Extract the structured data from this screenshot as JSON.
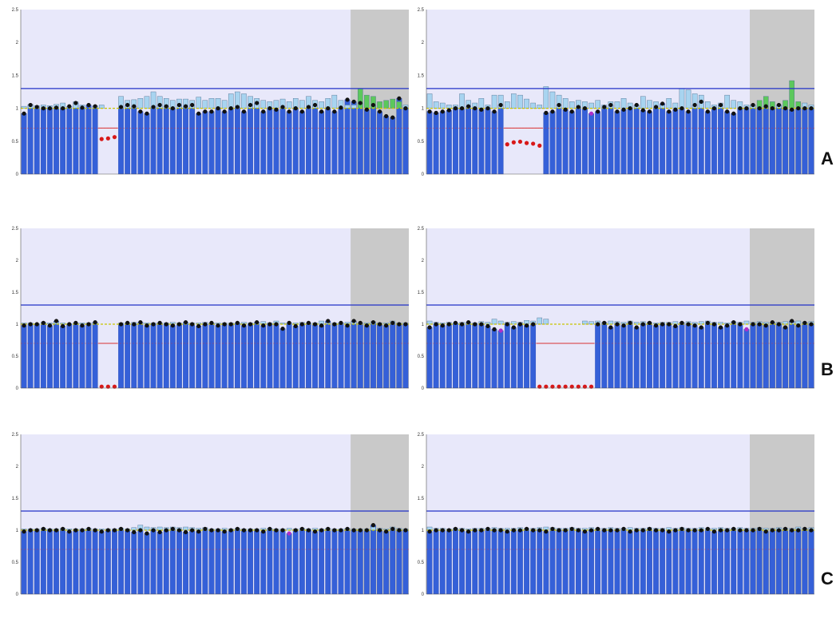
{
  "row_labels": [
    "A",
    "B",
    "C"
  ],
  "colors": {
    "plot_bg": "#e8e8fa",
    "ref_bg": "#c9c9c9",
    "bar": "#3560d8",
    "bar_edge": "#1e3ea8",
    "upper_line": "#2332c8",
    "lower_line": "#d83232",
    "mean_line": "#c8c400",
    "box_fill": "#a8d4f0",
    "box_ref_fill": "#5cc85c",
    "dot": "#111111",
    "deleted_dot": "#d81818",
    "purple_dot": "#b030c8"
  },
  "chart_data": [
    {
      "id": "A-left",
      "type": "bar",
      "ylim": [
        0,
        2.5
      ],
      "yticks": [
        "0",
        "0.5",
        "1",
        "1.5",
        "2",
        "2.5"
      ],
      "upper_threshold": 1.3,
      "lower_threshold": 0.7,
      "reference_start_index": 51,
      "deleted_range": [
        12,
        14
      ],
      "values": [
        0.92,
        1.05,
        1.02,
        1.0,
        1.0,
        1.01,
        1.0,
        1.03,
        1.08,
        1.01,
        1.05,
        1.03,
        0.52,
        0.53,
        0.55,
        1.02,
        1.05,
        1.03,
        0.95,
        0.92,
        1.02,
        1.05,
        1.03,
        1.0,
        1.05,
        1.03,
        1.05,
        0.92,
        0.95,
        0.95,
        1.0,
        0.95,
        1.0,
        1.02,
        0.95,
        1.05,
        1.08,
        0.95,
        1.0,
        0.98,
        1.02,
        0.95,
        1.0,
        0.95,
        1.02,
        1.05,
        0.95,
        1.0,
        0.95,
        1.01,
        1.13,
        1.1,
        1.08,
        0.98,
        1.05,
        0.95,
        0.88,
        0.86,
        1.15,
        1.0
      ],
      "box_heights": [
        1.03,
        1.06,
        1.04,
        1.05,
        1.04,
        1.06,
        1.08,
        1.03,
        1.1,
        1.05,
        1.0,
        1.04,
        1.05,
        1.0,
        1.0,
        1.18,
        1.12,
        1.13,
        1.15,
        1.18,
        1.25,
        1.18,
        1.15,
        1.12,
        1.14,
        1.14,
        1.12,
        1.17,
        1.12,
        1.15,
        1.15,
        1.12,
        1.22,
        1.25,
        1.22,
        1.18,
        1.15,
        1.12,
        1.1,
        1.12,
        1.14,
        1.1,
        1.15,
        1.12,
        1.18,
        1.12,
        1.1,
        1.15,
        1.2,
        1.12,
        1.05,
        1.05,
        1.3,
        1.2,
        1.18,
        1.1,
        1.12,
        1.14,
        1.1,
        1.05
      ]
    },
    {
      "id": "A-right",
      "type": "bar",
      "ylim": [
        0,
        2.5
      ],
      "yticks": [
        "0",
        "0.5",
        "1",
        "1.5",
        "2",
        "2.5"
      ],
      "upper_threshold": 1.3,
      "lower_threshold": 0.7,
      "reference_start_index": 50,
      "deleted_range": [
        12,
        17
      ],
      "purple_indices": [
        25
      ],
      "values": [
        0.95,
        0.93,
        0.95,
        0.97,
        1.0,
        1.0,
        1.03,
        1.0,
        0.98,
        1.0,
        0.95,
        1.05,
        0.44,
        0.47,
        0.48,
        0.46,
        0.45,
        0.42,
        0.93,
        0.95,
        1.05,
        0.98,
        0.95,
        1.02,
        1.0,
        0.92,
        0.95,
        1.02,
        1.05,
        0.95,
        0.98,
        1.0,
        1.05,
        0.97,
        0.95,
        1.02,
        1.07,
        0.95,
        0.98,
        1.0,
        0.95,
        1.05,
        1.1,
        0.95,
        1.0,
        1.05,
        0.95,
        0.92,
        1.0,
        1.0,
        1.05,
        1.0,
        1.03,
        1.0,
        1.05,
        1.0,
        0.98,
        1.0,
        1.0,
        1.0
      ],
      "box_heights": [
        1.22,
        1.1,
        1.08,
        1.05,
        1.05,
        1.22,
        1.12,
        1.08,
        1.15,
        1.05,
        1.2,
        1.2,
        1.1,
        1.22,
        1.2,
        1.14,
        1.08,
        1.05,
        1.33,
        1.25,
        1.2,
        1.15,
        1.1,
        1.12,
        1.1,
        1.08,
        1.12,
        1.05,
        1.1,
        1.1,
        1.15,
        1.08,
        1.05,
        1.18,
        1.12,
        1.1,
        1.05,
        1.15,
        1.08,
        1.3,
        1.28,
        1.22,
        1.2,
        1.1,
        1.05,
        1.08,
        1.2,
        1.12,
        1.1,
        1.05,
        1.05,
        1.12,
        1.18,
        1.1,
        1.05,
        1.12,
        1.42,
        1.1,
        1.08,
        1.05
      ]
    },
    {
      "id": "B-left",
      "type": "bar",
      "ylim": [
        0,
        2.5
      ],
      "yticks": [
        "0",
        "0.5",
        "1",
        "1.5",
        "2",
        "2.5"
      ],
      "upper_threshold": 1.3,
      "lower_threshold": 0.7,
      "reference_start_index": 51,
      "deleted_range": [
        12,
        14
      ],
      "values": [
        0.98,
        1.0,
        1.0,
        1.02,
        0.98,
        1.05,
        0.97,
        1.0,
        1.02,
        0.98,
        1.0,
        1.03,
        0.01,
        0.01,
        0.01,
        1.0,
        1.02,
        1.0,
        1.03,
        0.98,
        1.0,
        1.02,
        1.0,
        0.98,
        1.0,
        1.03,
        1.0,
        0.97,
        1.0,
        1.02,
        0.98,
        1.0,
        1.0,
        1.02,
        0.98,
        1.0,
        1.03,
        0.98,
        1.0,
        1.0,
        0.93,
        1.02,
        0.97,
        1.0,
        1.02,
        1.0,
        0.98,
        1.05,
        1.0,
        1.02,
        0.98,
        1.05,
        1.02,
        0.98,
        1.03,
        1.0,
        0.98,
        1.02,
        1.0,
        1.0
      ],
      "box_heights": [
        1.02,
        1.02,
        1.01,
        1.03,
        1.02,
        1.04,
        1.02,
        1.01,
        1.02,
        1.02,
        1.02,
        1.02,
        1.0,
        1.0,
        1.0,
        1.02,
        1.02,
        1.03,
        1.02,
        1.02,
        1.02,
        1.02,
        1.02,
        1.03,
        1.02,
        1.02,
        1.02,
        1.02,
        1.03,
        1.02,
        1.02,
        1.02,
        1.02,
        1.02,
        1.03,
        1.02,
        1.02,
        1.04,
        1.02,
        1.05,
        1.02,
        1.02,
        1.02,
        1.03,
        1.02,
        1.02,
        1.05,
        1.02,
        1.02,
        1.02,
        1.03,
        1.04,
        1.02,
        1.02,
        1.04,
        1.02,
        1.02,
        1.05,
        1.02,
        1.02
      ]
    },
    {
      "id": "B-right",
      "type": "bar",
      "ylim": [
        0,
        2.5
      ],
      "yticks": [
        "0",
        "0.5",
        "1",
        "1.5",
        "2",
        "2.5"
      ],
      "upper_threshold": 1.3,
      "lower_threshold": 0.7,
      "reference_start_index": 50,
      "deleted_range": [
        17,
        25
      ],
      "purple_indices": [
        11,
        49
      ],
      "values": [
        0.95,
        1.0,
        0.98,
        1.0,
        1.02,
        1.0,
        1.03,
        1.0,
        1.0,
        0.97,
        0.92,
        0.9,
        1.0,
        0.95,
        1.0,
        0.98,
        1.0,
        0.01,
        0.01,
        0.01,
        0.01,
        0.01,
        0.01,
        0.01,
        0.01,
        0.01,
        1.0,
        1.02,
        0.95,
        1.0,
        0.98,
        1.02,
        0.95,
        1.0,
        1.02,
        0.98,
        1.0,
        1.0,
        0.97,
        1.02,
        1.0,
        0.98,
        0.95,
        1.02,
        1.0,
        0.95,
        0.98,
        1.03,
        1.0,
        0.92,
        1.0,
        1.0,
        0.98,
        1.03,
        1.0,
        0.95,
        1.05,
        0.98,
        1.02,
        1.0
      ],
      "box_heights": [
        1.05,
        1.03,
        1.02,
        1.03,
        1.02,
        1.03,
        1.03,
        1.02,
        1.04,
        1.03,
        1.08,
        1.05,
        1.03,
        1.04,
        1.03,
        1.06,
        1.05,
        1.1,
        1.08,
        1.0,
        1.0,
        1.0,
        1.0,
        1.0,
        1.05,
        1.04,
        1.05,
        1.03,
        1.05,
        1.04,
        1.03,
        1.05,
        1.03,
        1.04,
        1.03,
        1.02,
        1.03,
        1.03,
        1.04,
        1.03,
        1.04,
        1.03,
        1.04,
        1.05,
        1.03,
        1.03,
        1.02,
        1.04,
        1.03,
        1.05,
        1.03,
        1.04,
        1.03,
        1.02,
        1.03,
        1.04,
        1.03,
        1.05,
        1.03,
        1.04
      ]
    },
    {
      "id": "C-left",
      "type": "bar",
      "ylim": [
        0,
        2.5
      ],
      "yticks": [
        "0",
        "0.5",
        "1",
        "1.5",
        "2",
        "2.5"
      ],
      "upper_threshold": 1.3,
      "lower_threshold": 0.7,
      "reference_start_index": 51,
      "deleted_range": [],
      "purple_indices": [
        41
      ],
      "values": [
        0.98,
        1.0,
        1.0,
        1.02,
        1.0,
        1.0,
        1.02,
        0.98,
        1.0,
        1.0,
        1.02,
        1.0,
        0.98,
        1.0,
        1.0,
        1.02,
        1.0,
        0.97,
        1.0,
        0.95,
        1.0,
        0.97,
        1.0,
        1.02,
        1.0,
        0.97,
        1.0,
        0.98,
        1.02,
        1.0,
        1.0,
        0.98,
        1.0,
        1.02,
        1.0,
        1.0,
        1.0,
        0.98,
        1.02,
        1.0,
        1.0,
        0.95,
        1.0,
        1.02,
        1.0,
        0.98,
        1.0,
        1.02,
        1.0,
        1.0,
        1.02,
        1.0,
        1.0,
        1.0,
        1.08,
        1.0,
        0.98,
        1.02,
        1.0,
        1.0
      ],
      "box_heights": [
        1.02,
        1.02,
        1.02,
        1.03,
        1.02,
        1.02,
        1.03,
        1.02,
        1.02,
        1.02,
        1.03,
        1.02,
        1.02,
        1.02,
        1.02,
        1.03,
        1.02,
        1.04,
        1.08,
        1.05,
        1.04,
        1.05,
        1.04,
        1.05,
        1.04,
        1.05,
        1.04,
        1.03,
        1.04,
        1.02,
        1.02,
        1.03,
        1.02,
        1.03,
        1.02,
        1.02,
        1.02,
        1.03,
        1.03,
        1.02,
        1.02,
        1.03,
        1.02,
        1.03,
        1.02,
        1.03,
        1.02,
        1.03,
        1.02,
        1.02,
        1.03,
        1.02,
        1.02,
        1.02,
        1.05,
        1.03,
        1.02,
        1.05,
        1.03,
        1.02
      ]
    },
    {
      "id": "C-right",
      "type": "bar",
      "ylim": [
        0,
        2.5
      ],
      "yticks": [
        "0",
        "0.5",
        "1",
        "1.5",
        "2",
        "2.5"
      ],
      "upper_threshold": 1.3,
      "lower_threshold": 0.7,
      "reference_start_index": 50,
      "deleted_range": [],
      "values": [
        0.98,
        1.0,
        1.0,
        1.0,
        1.02,
        1.0,
        0.98,
        1.0,
        1.0,
        1.02,
        1.0,
        1.0,
        0.98,
        1.0,
        1.0,
        1.02,
        1.0,
        1.0,
        0.98,
        1.02,
        1.0,
        1.0,
        1.02,
        1.0,
        0.98,
        1.0,
        1.02,
        1.0,
        1.0,
        1.0,
        1.02,
        0.98,
        1.0,
        1.0,
        1.02,
        1.0,
        1.0,
        0.98,
        1.0,
        1.02,
        1.0,
        1.0,
        1.0,
        1.02,
        0.98,
        1.0,
        1.0,
        1.02,
        1.0,
        1.0,
        1.0,
        1.02,
        0.98,
        1.0,
        1.0,
        1.02,
        1.0,
        1.0,
        1.02,
        1.0
      ],
      "box_heights": [
        1.05,
        1.03,
        1.03,
        1.02,
        1.03,
        1.03,
        1.02,
        1.03,
        1.03,
        1.03,
        1.04,
        1.03,
        1.03,
        1.03,
        1.04,
        1.03,
        1.03,
        1.04,
        1.05,
        1.04,
        1.03,
        1.03,
        1.04,
        1.03,
        1.03,
        1.04,
        1.03,
        1.03,
        1.04,
        1.03,
        1.03,
        1.04,
        1.03,
        1.03,
        1.04,
        1.03,
        1.03,
        1.04,
        1.03,
        1.04,
        1.03,
        1.03,
        1.04,
        1.03,
        1.03,
        1.04,
        1.03,
        1.03,
        1.04,
        1.03,
        1.03,
        1.04,
        1.03,
        1.03,
        1.04,
        1.03,
        1.03,
        1.05,
        1.03,
        1.04
      ]
    }
  ]
}
